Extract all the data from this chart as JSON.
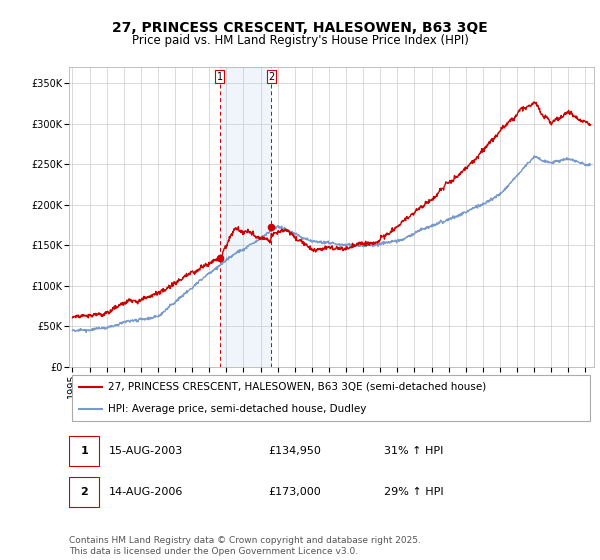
{
  "title": "27, PRINCESS CRESCENT, HALESOWEN, B63 3QE",
  "subtitle": "Price paid vs. HM Land Registry's House Price Index (HPI)",
  "ylim": [
    0,
    370000
  ],
  "xlim": [
    1994.8,
    2025.5
  ],
  "yticks": [
    0,
    50000,
    100000,
    150000,
    200000,
    250000,
    300000,
    350000
  ],
  "ytick_labels": [
    "£0",
    "£50K",
    "£100K",
    "£150K",
    "£200K",
    "£250K",
    "£300K",
    "£350K"
  ],
  "background_color": "#ffffff",
  "plot_bg_color": "#ffffff",
  "grid_color": "#cccccc",
  "line1_color": "#cc0000",
  "line2_color": "#7799cc",
  "purchase1_year": 2003.62,
  "purchase1_price": 134950,
  "purchase2_year": 2006.62,
  "purchase2_price": 173000,
  "vline_color": "#cc0000",
  "shade_color": "#ddeeff",
  "legend_line1": "27, PRINCESS CRESCENT, HALESOWEN, B63 3QE (semi-detached house)",
  "legend_line2": "HPI: Average price, semi-detached house, Dudley",
  "annotation1_date": "15-AUG-2003",
  "annotation1_price": "£134,950",
  "annotation1_hpi": "31% ↑ HPI",
  "annotation2_date": "14-AUG-2006",
  "annotation2_price": "£173,000",
  "annotation2_hpi": "29% ↑ HPI",
  "footer": "Contains HM Land Registry data © Crown copyright and database right 2025.\nThis data is licensed under the Open Government Licence v3.0.",
  "title_fontsize": 10,
  "subtitle_fontsize": 8.5,
  "tick_fontsize": 7,
  "legend_fontsize": 7.5,
  "annotation_fontsize": 8,
  "footer_fontsize": 6.5
}
